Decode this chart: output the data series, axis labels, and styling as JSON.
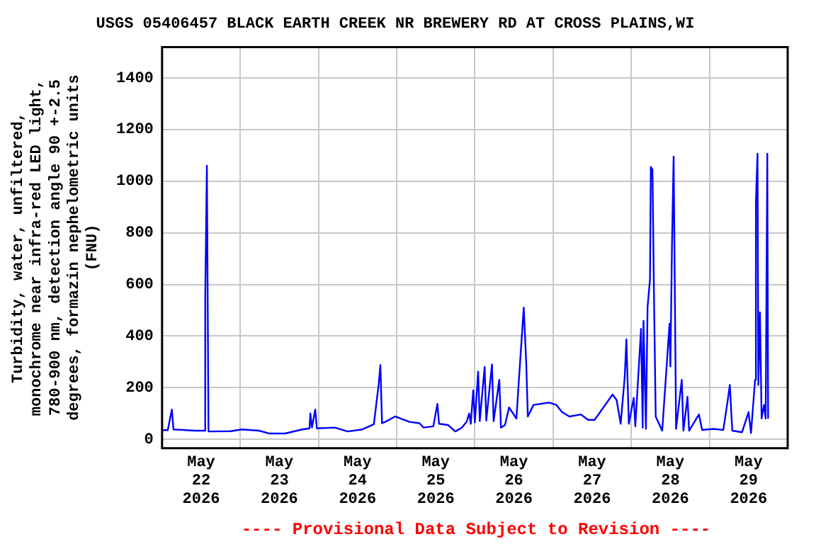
{
  "chart_data": {
    "type": "line",
    "title": "USGS 05406457 BLACK EARTH CREEK NR BREWERY RD AT CROSS PLAINS,WI",
    "ylabel": "Turbidity, water, unfiltered,\nmonochrome near infra-red LED light,\n780-900 nm, detection angle 90 +-2.5\ndegrees, formazin nephelometric units\n(FNU)",
    "annotations": [
      "---- Provisional Data Subject to Revision ----"
    ],
    "x": [
      "2026-05-22T00:00",
      "2026-05-22T01:45",
      "2026-05-22T03:00",
      "2026-05-22T03:30",
      "2026-05-22T10:00",
      "2026-05-22T13:00",
      "2026-05-22T13:15",
      "2026-05-22T13:45",
      "2026-05-22T14:15",
      "2026-05-22T21:00",
      "2026-05-23T00:30",
      "2026-05-23T05:45",
      "2026-05-23T09:00",
      "2026-05-23T13:45",
      "2026-05-23T19:00",
      "2026-05-23T21:15",
      "2026-05-23T21:30",
      "2026-05-23T22:00",
      "2026-05-23T23:00",
      "2026-05-23T23:30",
      "2026-05-24T05:00",
      "2026-05-24T09:00",
      "2026-05-24T13:30",
      "2026-05-24T17:00",
      "2026-05-24T18:30",
      "2026-05-24T19:00",
      "2026-05-24T19:30",
      "2026-05-24T20:30",
      "2026-05-24T23:30",
      "2026-05-25T04:00",
      "2026-05-25T07:00",
      "2026-05-25T08:15",
      "2026-05-25T11:15",
      "2026-05-25T12:30",
      "2026-05-25T13:00",
      "2026-05-25T15:45",
      "2026-05-25T18:00",
      "2026-05-25T20:00",
      "2026-05-25T21:30",
      "2026-05-25T22:15",
      "2026-05-25T22:45",
      "2026-05-25T23:30",
      "2026-05-26T00:00",
      "2026-05-26T01:00",
      "2026-05-26T01:30",
      "2026-05-26T03:00",
      "2026-05-26T03:30",
      "2026-05-26T05:15",
      "2026-05-26T05:45",
      "2026-05-26T07:30",
      "2026-05-26T08:00",
      "2026-05-26T09:15",
      "2026-05-26T10:30",
      "2026-05-26T12:45",
      "2026-05-26T13:30",
      "2026-05-26T15:00",
      "2026-05-26T15:45",
      "2026-05-26T16:15",
      "2026-05-26T18:00",
      "2026-05-26T22:45",
      "2026-05-27T01:00",
      "2026-05-27T02:45",
      "2026-05-27T05:00",
      "2026-05-27T08:30",
      "2026-05-27T10:45",
      "2026-05-27T12:45",
      "2026-05-27T16:00",
      "2026-05-27T18:15",
      "2026-05-27T19:30",
      "2026-05-27T20:45",
      "2026-05-27T22:00",
      "2026-05-27T22:30",
      "2026-05-27T23:15",
      "2026-05-28T00:45",
      "2026-05-28T01:15",
      "2026-05-28T03:00",
      "2026-05-28T03:30",
      "2026-05-28T03:45",
      "2026-05-28T04:30",
      "2026-05-28T05:00",
      "2026-05-28T05:45",
      "2026-05-28T06:00",
      "2026-05-28T06:30",
      "2026-05-28T07:00",
      "2026-05-28T07:30",
      "2026-05-28T09:30",
      "2026-05-28T11:45",
      "2026-05-28T12:00",
      "2026-05-28T12:30",
      "2026-05-28T13:00",
      "2026-05-28T13:45",
      "2026-05-28T15:30",
      "2026-05-28T16:00",
      "2026-05-28T17:15",
      "2026-05-28T17:45",
      "2026-05-28T20:45",
      "2026-05-28T21:45",
      "2026-05-29T01:15",
      "2026-05-29T04:15",
      "2026-05-29T05:30",
      "2026-05-29T06:15",
      "2026-05-29T07:00",
      "2026-05-29T10:00",
      "2026-05-29T12:00",
      "2026-05-29T12:45",
      "2026-05-29T14:00",
      "2026-05-29T14:15",
      "2026-05-29T14:45",
      "2026-05-29T15:00",
      "2026-05-29T15:30",
      "2026-05-29T16:00",
      "2026-05-29T16:45",
      "2026-05-29T17:15",
      "2026-05-29T17:45",
      "2026-05-29T18:00"
    ],
    "series": [
      {
        "color": "#0000ff",
        "values": [
          35,
          35,
          115,
          38,
          33,
          33,
          548,
          1060,
          30,
          31,
          38,
          33,
          22,
          22,
          38,
          42,
          100,
          45,
          115,
          42,
          45,
          30,
          38,
          58,
          215,
          287,
          62,
          67,
          88,
          67,
          62,
          45,
          50,
          137,
          60,
          55,
          30,
          45,
          68,
          100,
          60,
          190,
          65,
          262,
          70,
          280,
          72,
          290,
          70,
          230,
          45,
          55,
          123,
          80,
          227,
          510,
          300,
          88,
          133,
          142,
          133,
          105,
          88,
          96,
          75,
          75,
          133,
          173,
          152,
          60,
          243,
          387,
          60,
          160,
          50,
          428,
          45,
          459,
          40,
          512,
          620,
          1055,
          1045,
          530,
          88,
          33,
          448,
          282,
          752,
          1096,
          40,
          230,
          33,
          164,
          33,
          96,
          36,
          40,
          36,
          142,
          210,
          33,
          27,
          105,
          24,
          230,
          917,
          1107,
          210,
          492,
          80,
          133,
          80,
          1107,
          80
        ]
      }
    ],
    "xlim": [
      "2026-05-22",
      "2026-05-30"
    ],
    "xticks": [
      {
        "value": "2026-05-22T12:00",
        "label": "May\n22\n2026"
      },
      {
        "value": "2026-05-23",
        "label": null
      },
      {
        "value": "2026-05-23T12:00",
        "label": "May\n23\n2026"
      },
      {
        "value": "2026-05-24",
        "label": null
      },
      {
        "value": "2026-05-24T12:00",
        "label": "May\n24\n2026"
      },
      {
        "value": "2026-05-25",
        "label": null
      },
      {
        "value": "2026-05-25T12:00",
        "label": "May\n25\n2026"
      },
      {
        "value": "2026-05-26",
        "label": null
      },
      {
        "value": "2026-05-26T12:00",
        "label": "May\n26\n2026"
      },
      {
        "value": "2026-05-27",
        "label": null
      },
      {
        "value": "2026-05-27T12:00",
        "label": "May\n27\n2026"
      },
      {
        "value": "2026-05-28",
        "label": null
      },
      {
        "value": "2026-05-28T12:00",
        "label": "May\n28\n2026"
      },
      {
        "value": "2026-05-29",
        "label": null
      },
      {
        "value": "2026-05-29T12:00",
        "label": "May\n29\n2026"
      }
    ],
    "ylim": [
      -35,
      1520
    ],
    "yticks": [
      0,
      200,
      400,
      600,
      800,
      1000,
      1200,
      1400
    ],
    "grid": true,
    "legend": false
  }
}
